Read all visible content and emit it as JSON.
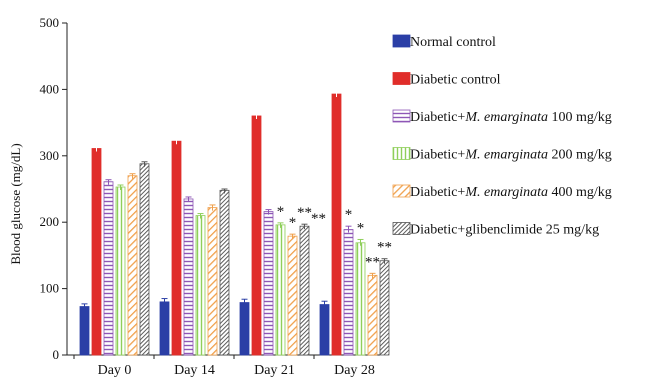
{
  "chart_data": {
    "type": "bar",
    "ylabel": "Blood glucose (mg/dL)",
    "xlabel": "",
    "ylim": [
      0,
      500
    ],
    "yticks": [
      0,
      100,
      200,
      300,
      400,
      500
    ],
    "grid": false,
    "legend_position": "right",
    "categories": [
      "Day 0",
      "Day 14",
      "Day 21",
      "Day 28"
    ],
    "series": [
      {
        "name": "Normal control",
        "name_parts": [
          [
            "Normal control",
            false
          ]
        ],
        "color": "#2b3fa6",
        "pattern": "solid-blue",
        "values": [
          73,
          80,
          79,
          76
        ],
        "errors": [
          4,
          5,
          5,
          5
        ],
        "marks": [
          "",
          "",
          "",
          ""
        ]
      },
      {
        "name": "Diabetic control",
        "name_parts": [
          [
            "Diabetic control",
            false
          ]
        ],
        "color": "#e02d2a",
        "pattern": "solid-red",
        "values": [
          311,
          322,
          360,
          393
        ],
        "errors": [
          8,
          6,
          8,
          7
        ],
        "marks": [
          "",
          "",
          "",
          ""
        ]
      },
      {
        "name": "Diabetic+M. emarginata 100 mg/kg",
        "name_parts": [
          [
            "Diabetic+",
            false
          ],
          [
            "M. emarginata",
            true
          ],
          [
            " 100 mg/kg",
            false
          ]
        ],
        "color": "#8e57b6",
        "pattern": "hlines",
        "values": [
          261,
          235,
          216,
          189
        ],
        "errors": [
          3,
          3,
          3,
          5
        ],
        "marks": [
          "",
          "",
          "",
          "*"
        ]
      },
      {
        "name": "Diabetic+M. emarginata 200 mg/kg",
        "name_parts": [
          [
            "Diabetic+",
            false
          ],
          [
            "M. emarginata",
            true
          ],
          [
            " 200 mg/kg",
            false
          ]
        ],
        "color": "#8fcf5a",
        "pattern": "vlines",
        "values": [
          253,
          210,
          196,
          169
        ],
        "errors": [
          3,
          3,
          3,
          5
        ],
        "marks": [
          "",
          "",
          "*",
          "*"
        ]
      },
      {
        "name": "Diabetic+M. emarginata 400 mg/kg",
        "name_parts": [
          [
            "Diabetic+",
            false
          ],
          [
            "M. emarginata",
            true
          ],
          [
            " 400 mg/kg",
            false
          ]
        ],
        "color": "#f0a04b",
        "pattern": "diag",
        "values": [
          270,
          222,
          179,
          120
        ],
        "errors": [
          3,
          4,
          3,
          3
        ],
        "marks": [
          "",
          "",
          "*",
          "**"
        ]
      },
      {
        "name": "Diabetic+glibenclimide 25 mg/kg",
        "name_parts": [
          [
            "Diabetic+glibenclimide 25 mg/kg",
            false
          ]
        ],
        "color": "#555555",
        "pattern": "dense-diag",
        "values": [
          288,
          248,
          194,
          142
        ],
        "errors": [
          3,
          2,
          3,
          3
        ],
        "marks": [
          "",
          "",
          "**",
          "**"
        ]
      }
    ],
    "extra_marks": [
      {
        "category_index": 2,
        "series_index": 5,
        "text": "**"
      }
    ]
  }
}
